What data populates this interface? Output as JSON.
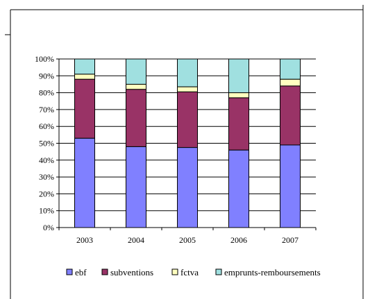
{
  "chart_data": {
    "type": "bar",
    "stacked": true,
    "percent": true,
    "categories": [
      "2003",
      "2004",
      "2005",
      "2006",
      "2007"
    ],
    "series": [
      {
        "name": "ebf",
        "color": "#8080ff",
        "values": [
          53,
          48,
          47.5,
          46,
          49
        ]
      },
      {
        "name": "subventions",
        "color": "#993366",
        "values": [
          35,
          34,
          33,
          31,
          35
        ]
      },
      {
        "name": "fctva",
        "color": "#ffffc0",
        "values": [
          3,
          3,
          3,
          3,
          4
        ]
      },
      {
        "name": "emprunts-remboursements",
        "color": "#a0e0e0",
        "values": [
          9,
          15,
          16.5,
          20,
          12
        ]
      }
    ],
    "y_ticks": [
      "0%",
      "10%",
      "20%",
      "30%",
      "40%",
      "50%",
      "60%",
      "70%",
      "80%",
      "90%",
      "100%"
    ],
    "ylim": [
      0,
      100
    ],
    "grid": true,
    "legend_position": "bottom",
    "title": "",
    "xlabel": "",
    "ylabel": ""
  }
}
